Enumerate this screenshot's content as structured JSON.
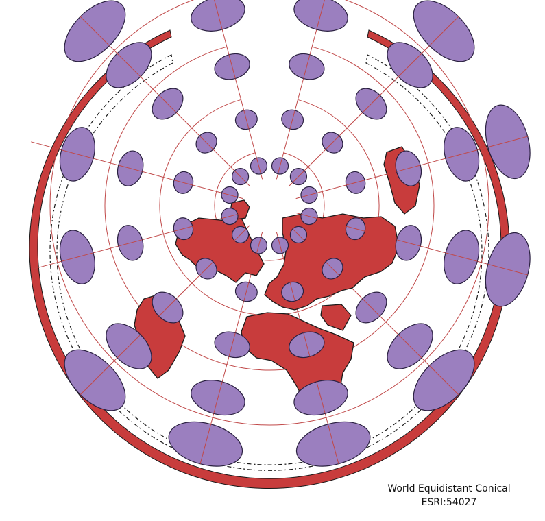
{
  "projection_name": "World Equidistant Conical",
  "projection_code": "ESRI:54027",
  "colors": {
    "land": "#c83c3c",
    "outline": "#1a1a1a",
    "graticule": "#c04848",
    "indicatrix_fill": "#9b7fbf",
    "indicatrix_stroke": "#2a2040",
    "background": "#ffffff"
  },
  "graticule": {
    "ring_radii_note": "",
    "meridian_count": 12
  },
  "indicatrix": {
    "shape": "tissot-ellipse"
  }
}
